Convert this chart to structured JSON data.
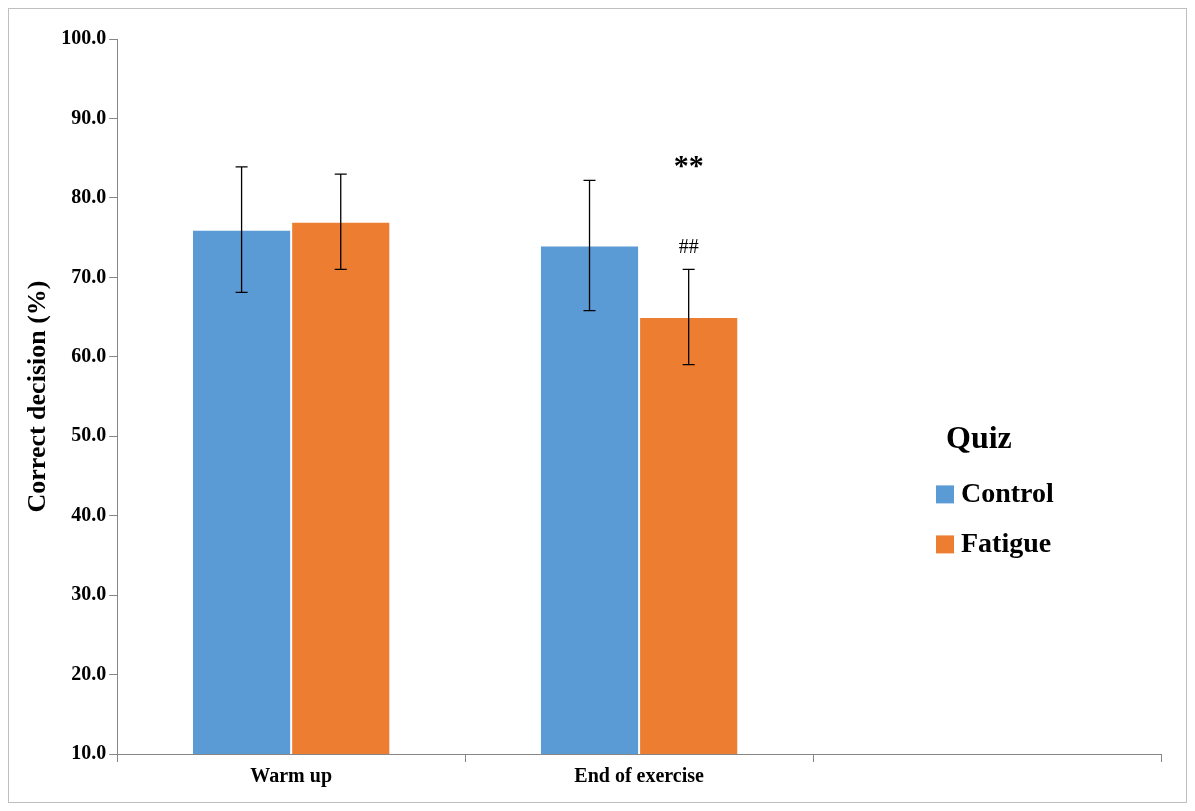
{
  "chart_data": {
    "type": "bar",
    "ylabel": "Correct decision (%)",
    "legend_title": "Quiz",
    "categories": [
      "Warm up",
      "End of exercise",
      null
    ],
    "series": [
      {
        "name": "Control",
        "color": "#5b9bd5",
        "values": [
          76,
          74,
          null
        ],
        "errors": [
          7.9,
          8.2,
          null
        ]
      },
      {
        "name": "Fatigue",
        "color": "#ed7d31",
        "values": [
          77,
          65,
          null
        ],
        "errors": [
          6,
          6,
          null
        ]
      }
    ],
    "ylim": [
      10,
      100
    ],
    "yticks": [
      {
        "value": 10,
        "label": "10.0"
      },
      {
        "value": 20,
        "label": "20.0"
      },
      {
        "value": 30,
        "label": "30.0"
      },
      {
        "value": 40,
        "label": "40.0"
      },
      {
        "value": 50,
        "label": "50.0"
      },
      {
        "value": 60,
        "label": "60.0"
      },
      {
        "value": 70,
        "label": "70.0"
      },
      {
        "value": 80,
        "label": "80.0"
      },
      {
        "value": 90,
        "label": "90.0"
      },
      {
        "value": 100,
        "label": "100.0"
      }
    ],
    "legend": "right",
    "annotations": [
      "**",
      "##"
    ]
  }
}
